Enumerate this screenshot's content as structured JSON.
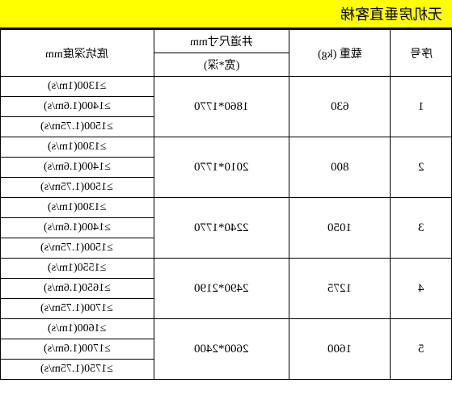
{
  "title": "无机房垂直客梯",
  "headers": {
    "col1": "底坑深度mm",
    "col2": "井道尺寸mm",
    "col2_sub": "(宽*深)",
    "col3": "载重 (kg)",
    "col4": "序号"
  },
  "rows": [
    {
      "seq": "1",
      "load": "630",
      "shaft": "1860*1770",
      "depths": [
        "≥1300(1m/s)",
        "≥1400(1.6m/s)",
        "≥1500(1.75m/s)"
      ]
    },
    {
      "seq": "2",
      "load": "800",
      "shaft": "2010*1770",
      "depths": [
        "≥1300(1m/s)",
        "≥1400(1.6m/s)",
        "≥1500(1.75m/s)"
      ]
    },
    {
      "seq": "3",
      "load": "1050",
      "shaft": "2240*1770",
      "depths": [
        "≥1300(1m/s)",
        "≥1400(1.6m/s)",
        "≥1500(1.75m/s)"
      ]
    },
    {
      "seq": "4",
      "load": "1275",
      "shaft": "2490*2190",
      "depths": [
        "≥1550(1m/s)",
        "≥1650(1.6m/s)",
        "≥1700(1.75m/s)"
      ]
    },
    {
      "seq": "5",
      "load": "1600",
      "shaft": "2600*2400",
      "depths": [
        "≥1600(1m/s)",
        "≥1700(1.6m/s)",
        "≥1750(1.75m/s)"
      ]
    }
  ],
  "colors": {
    "title_bg": "#ffff00",
    "border": "#000000",
    "bg": "#ffffff"
  }
}
